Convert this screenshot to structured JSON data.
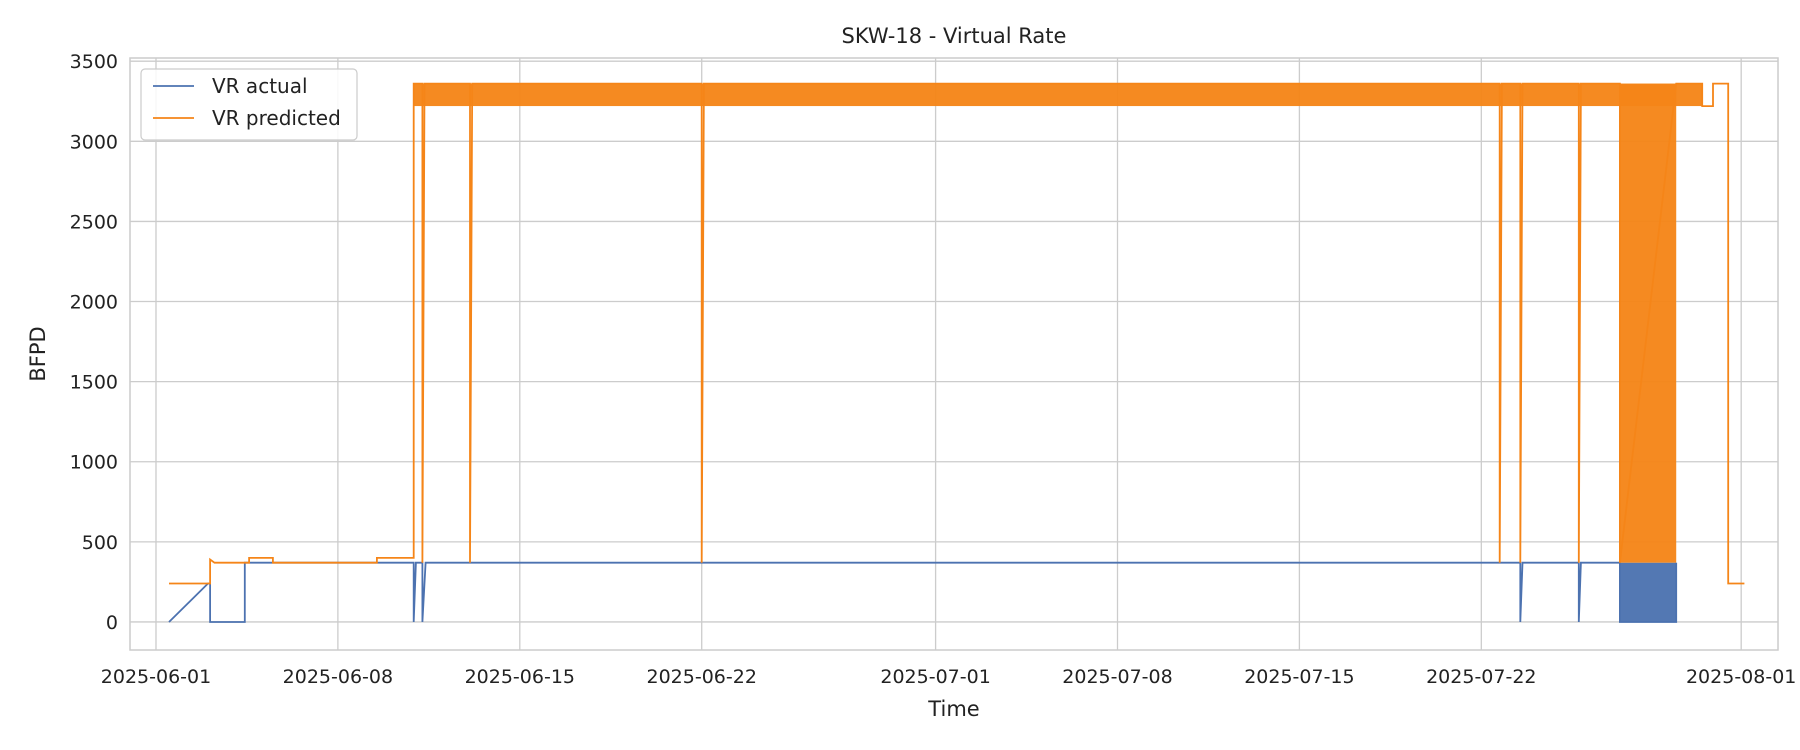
{
  "chart_data": {
    "type": "line",
    "title": "SKW-18 - Virtual Rate",
    "xlabel": "Time",
    "ylabel": "BFPD",
    "x_type": "date",
    "xlim": [
      "2025-05-31T00:00",
      "2025-08-02T10:00"
    ],
    "ylim": [
      -175,
      3520
    ],
    "x_ticks": [
      "2025-06-01",
      "2025-06-08",
      "2025-06-15",
      "2025-06-22",
      "2025-07-01",
      "2025-07-08",
      "2025-07-15",
      "2025-07-22",
      "2025-08-01"
    ],
    "y_ticks": [
      0,
      500,
      1000,
      1500,
      2000,
      2500,
      3000,
      3500
    ],
    "y_tick_labels": [
      "0",
      "500",
      "1000",
      "1500",
      "2000",
      "2500",
      "3000",
      "3500"
    ],
    "grid": true,
    "legend_position": "top-left",
    "series": [
      {
        "name": "VR actual",
        "color": "#4c72b0",
        "x": [
          "2025-06-01T12:00",
          "2025-06-03T00:00",
          "2025-06-03T02:00",
          "2025-06-03T02:00",
          "2025-06-03T08:00",
          "2025-06-04T10:00",
          "2025-06-04T10:00",
          "2025-06-04T14:00",
          "2025-06-10T22:00",
          "2025-06-10T22:00",
          "2025-06-11T00:00",
          "2025-06-11T06:00",
          "2025-06-11T06:00",
          "2025-06-11T09:00",
          "2025-07-23T12:00",
          "2025-07-23T12:00",
          "2025-07-23T14:00",
          "2025-07-25T18:00",
          "2025-07-25T18:00",
          "2025-07-25T20:00",
          "2025-07-27T08:00",
          "2025-07-27T08:00",
          "2025-07-28T12:00",
          "2025-07-28T20:00",
          "2025-07-29T12:00",
          "2025-07-29T12:00"
        ],
        "y": [
          0,
          240,
          240,
          0,
          0,
          0,
          370,
          370,
          370,
          0,
          370,
          370,
          0,
          370,
          370,
          0,
          370,
          370,
          0,
          370,
          370,
          0,
          0,
          0,
          0,
          370
        ],
        "band": {
          "x_start": "2025-07-27T08:00",
          "x_end": "2025-07-29T12:00",
          "y_low": 0,
          "y_high": 370
        }
      },
      {
        "name": "VR predicted",
        "color": "#f58518",
        "x": [
          "2025-06-01T12:00",
          "2025-06-03T02:00",
          "2025-06-03T02:00",
          "2025-06-03T06:00",
          "2025-06-04T14:00",
          "2025-06-04T14:00",
          "2025-06-05T12:00",
          "2025-06-05T12:00",
          "2025-06-09T12:00",
          "2025-06-09T12:00",
          "2025-06-10T22:00",
          "2025-06-10T22:00",
          "2025-06-11T00:00",
          "2025-06-11T06:00",
          "2025-06-11T06:00",
          "2025-06-11T08:00",
          "2025-06-13T02:00",
          "2025-06-13T02:00",
          "2025-06-13T04:00",
          "2025-06-22T00:00",
          "2025-06-22T00:00",
          "2025-06-22T02:00",
          "2025-07-22T17:00",
          "2025-07-22T17:00",
          "2025-07-22T19:00",
          "2025-07-23T12:00",
          "2025-07-23T12:00",
          "2025-07-23T14:00",
          "2025-07-25T18:00",
          "2025-07-25T18:00",
          "2025-07-25T20:00",
          "2025-07-27T08:00",
          "2025-07-27T08:00",
          "2025-07-29T12:00",
          "2025-07-30T12:00",
          "2025-07-30T12:00",
          "2025-07-30T22:00",
          "2025-07-30T22:00",
          "2025-07-31T12:00",
          "2025-07-31T12:00",
          "2025-08-01T03:00"
        ],
        "y": [
          240,
          240,
          390,
          370,
          370,
          400,
          400,
          370,
          370,
          400,
          400,
          3360,
          3360,
          3360,
          370,
          3360,
          3360,
          370,
          3360,
          3360,
          370,
          3360,
          3360,
          370,
          3360,
          3360,
          370,
          3360,
          3360,
          370,
          3360,
          3360,
          370,
          3360,
          3360,
          3220,
          3220,
          3360,
          3360,
          240,
          240
        ],
        "band": {
          "x_start": "2025-06-10T22:00",
          "x_end": "2025-07-30T12:00",
          "y_low": 3220,
          "y_high": 3360
        },
        "spike_band": {
          "x_start": "2025-07-27T08:00",
          "x_end": "2025-07-29T12:00",
          "y_low": 370,
          "y_high": 3360
        }
      }
    ]
  }
}
